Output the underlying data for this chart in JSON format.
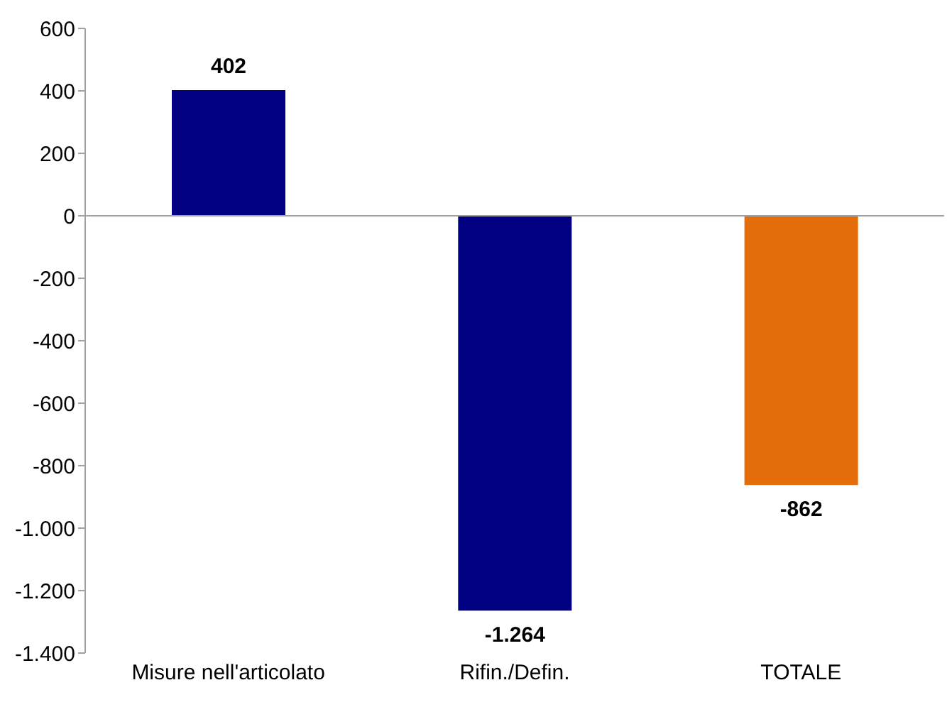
{
  "chart_data": {
    "type": "bar",
    "categories": [
      "Misure nell'articolato",
      "Rifin./Defin.",
      "TOTALE"
    ],
    "values": [
      402,
      -1264,
      -862
    ],
    "colors": [
      "#000080",
      "#000080",
      "#e46c0a"
    ],
    "value_labels": [
      "402",
      "-1.264",
      "-862"
    ],
    "ylim": [
      -1400,
      600
    ],
    "yticks": [
      600,
      400,
      200,
      0,
      -200,
      -400,
      -600,
      -800,
      {
        "value": -1000,
        "label": "-1.000"
      },
      {
        "value": -1200,
        "label": "-1.200"
      },
      {
        "value": -1400,
        "label": "-1.400"
      }
    ],
    "ref_lines": [
      {
        "axis": "y",
        "value": 0,
        "color": "#a0a0a0"
      }
    ],
    "legend": false
  }
}
